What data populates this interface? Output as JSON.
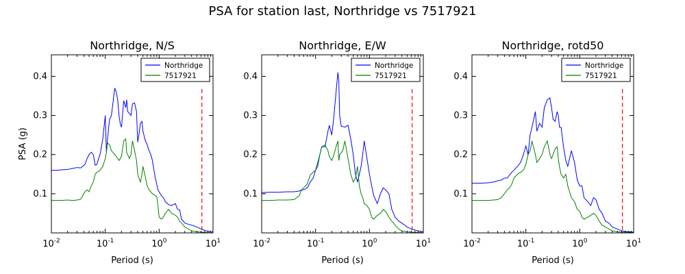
{
  "figure": {
    "title": "PSA for station last, Northridge vs 7517921"
  },
  "chart_data": [
    {
      "type": "line",
      "title": "Northridge, N/S",
      "xlabel": "Period (s)",
      "ylabel": "PSA (g)",
      "xscale": "log",
      "xlim": [
        0.01,
        10
      ],
      "ylim": [
        0,
        0.455
      ],
      "xticks": [
        {
          "value": 0.01,
          "base": "10",
          "exp": "-2"
        },
        {
          "value": 0.1,
          "base": "10",
          "exp": "-1"
        },
        {
          "value": 1,
          "base": "10",
          "exp": "0"
        },
        {
          "value": 10,
          "base": "10",
          "exp": "1"
        }
      ],
      "yticks": [
        {
          "value": 0.1,
          "label": "0.1"
        },
        {
          "value": 0.2,
          "label": "0.2"
        },
        {
          "value": 0.3,
          "label": "0.3"
        },
        {
          "value": 0.4,
          "label": "0.4"
        }
      ],
      "legend": {
        "position": "upper right",
        "show": true
      },
      "vline": {
        "x": 6.2,
        "color": "#ff0000",
        "style": "dashed"
      },
      "series": [
        {
          "name": "Northridge",
          "color": "#0000ff",
          "x": [
            0.01,
            0.012,
            0.015,
            0.02,
            0.025,
            0.03,
            0.035,
            0.038,
            0.042,
            0.046,
            0.05,
            0.055,
            0.06,
            0.065,
            0.07,
            0.075,
            0.08,
            0.09,
            0.1,
            0.105,
            0.11,
            0.12,
            0.13,
            0.15,
            0.16,
            0.17,
            0.18,
            0.19,
            0.2,
            0.22,
            0.24,
            0.25,
            0.26,
            0.27,
            0.28,
            0.3,
            0.32,
            0.35,
            0.38,
            0.4,
            0.42,
            0.45,
            0.48,
            0.5,
            0.55,
            0.6,
            0.65,
            0.7,
            0.75,
            0.8,
            0.85,
            0.9,
            0.95,
            1.0,
            1.1,
            1.2,
            1.3,
            1.5,
            1.7,
            2.0,
            2.2,
            2.4,
            2.6,
            2.8,
            3.0,
            3.5,
            4.0,
            5.0,
            6.0,
            7.5,
            10.0
          ],
          "y": [
            0.16,
            0.16,
            0.161,
            0.162,
            0.165,
            0.167,
            0.166,
            0.17,
            0.175,
            0.19,
            0.2,
            0.206,
            0.2,
            0.173,
            0.175,
            0.19,
            0.2,
            0.24,
            0.3,
            0.205,
            0.24,
            0.29,
            0.3,
            0.37,
            0.36,
            0.34,
            0.3,
            0.278,
            0.27,
            0.338,
            0.32,
            0.34,
            0.31,
            0.308,
            0.305,
            0.3,
            0.33,
            0.332,
            0.31,
            0.232,
            0.25,
            0.28,
            0.285,
            0.26,
            0.237,
            0.225,
            0.21,
            0.2,
            0.185,
            0.16,
            0.14,
            0.125,
            0.11,
            0.105,
            0.095,
            0.09,
            0.08,
            0.072,
            0.07,
            0.075,
            0.06,
            0.059,
            0.035,
            0.03,
            0.025,
            0.022,
            0.02,
            0.015,
            0.01,
            0.005,
            0.003
          ]
        },
        {
          "name": "7517921",
          "color": "#008000",
          "x": [
            0.01,
            0.012,
            0.015,
            0.02,
            0.025,
            0.03,
            0.035,
            0.038,
            0.042,
            0.046,
            0.05,
            0.055,
            0.06,
            0.065,
            0.07,
            0.075,
            0.08,
            0.09,
            0.1,
            0.105,
            0.11,
            0.12,
            0.13,
            0.15,
            0.16,
            0.17,
            0.18,
            0.19,
            0.2,
            0.22,
            0.24,
            0.25,
            0.26,
            0.27,
            0.28,
            0.3,
            0.32,
            0.35,
            0.38,
            0.4,
            0.42,
            0.45,
            0.48,
            0.5,
            0.55,
            0.6,
            0.65,
            0.7,
            0.75,
            0.8,
            0.85,
            0.9,
            0.95,
            1.0,
            1.1,
            1.2,
            1.3,
            1.5,
            1.7,
            2.0,
            2.2,
            2.4,
            2.6,
            2.8,
            3.0,
            3.5,
            4.0,
            5.0,
            6.0,
            7.5,
            10.0
          ],
          "y": [
            0.083,
            0.083,
            0.083,
            0.084,
            0.083,
            0.084,
            0.086,
            0.095,
            0.105,
            0.11,
            0.105,
            0.12,
            0.13,
            0.15,
            0.155,
            0.157,
            0.16,
            0.17,
            0.19,
            0.205,
            0.23,
            0.225,
            0.21,
            0.2,
            0.195,
            0.19,
            0.185,
            0.19,
            0.195,
            0.235,
            0.24,
            0.205,
            0.2,
            0.195,
            0.19,
            0.2,
            0.235,
            0.21,
            0.185,
            0.15,
            0.14,
            0.13,
            0.15,
            0.17,
            0.145,
            0.12,
            0.11,
            0.105,
            0.1,
            0.098,
            0.095,
            0.093,
            0.07,
            0.04,
            0.035,
            0.04,
            0.05,
            0.06,
            0.05,
            0.045,
            0.04,
            0.03,
            0.025,
            0.02,
            0.015,
            0.01,
            0.005,
            0.003,
            0.002,
            0.001,
            0.0005
          ]
        }
      ]
    },
    {
      "type": "line",
      "title": "Northridge, E/W",
      "xlabel": "Period (s)",
      "ylabel": "",
      "xscale": "log",
      "xlim": [
        0.01,
        10
      ],
      "ylim": [
        0,
        0.455
      ],
      "xticks": [
        {
          "value": 0.01,
          "base": "10",
          "exp": "-2"
        },
        {
          "value": 0.1,
          "base": "10",
          "exp": "-1"
        },
        {
          "value": 1,
          "base": "10",
          "exp": "0"
        },
        {
          "value": 10,
          "base": "10",
          "exp": "1"
        }
      ],
      "yticks": [
        {
          "value": 0.1,
          "label": "0.1"
        },
        {
          "value": 0.2,
          "label": "0.2"
        },
        {
          "value": 0.3,
          "label": "0.3"
        },
        {
          "value": 0.4,
          "label": "0.4"
        }
      ],
      "legend": {
        "position": "upper right",
        "show": true
      },
      "vline": {
        "x": 6.2,
        "color": "#ff0000",
        "style": "dashed"
      },
      "series": [
        {
          "name": "Northridge",
          "color": "#0000ff",
          "x": [
            0.01,
            0.015,
            0.02,
            0.03,
            0.04,
            0.05,
            0.055,
            0.06,
            0.07,
            0.08,
            0.09,
            0.1,
            0.11,
            0.12,
            0.13,
            0.15,
            0.17,
            0.18,
            0.2,
            0.22,
            0.24,
            0.26,
            0.27,
            0.28,
            0.3,
            0.32,
            0.35,
            0.4,
            0.45,
            0.5,
            0.55,
            0.6,
            0.65,
            0.7,
            0.75,
            0.8,
            0.9,
            1.0,
            1.1,
            1.2,
            1.4,
            1.6,
            1.8,
            2.0,
            2.3,
            2.6,
            3.0,
            3.5,
            4.0,
            5.0,
            6.0,
            8.0,
            10.0
          ],
          "y": [
            0.103,
            0.104,
            0.104,
            0.105,
            0.105,
            0.107,
            0.11,
            0.11,
            0.115,
            0.13,
            0.14,
            0.16,
            0.18,
            0.2,
            0.22,
            0.22,
            0.26,
            0.275,
            0.25,
            0.3,
            0.36,
            0.41,
            0.39,
            0.3,
            0.272,
            0.272,
            0.27,
            0.275,
            0.24,
            0.2,
            0.15,
            0.13,
            0.15,
            0.17,
            0.2,
            0.235,
            0.19,
            0.15,
            0.12,
            0.095,
            0.075,
            0.1,
            0.115,
            0.11,
            0.1,
            0.06,
            0.04,
            0.03,
            0.025,
            0.015,
            0.01,
            0.005,
            0.003
          ]
        },
        {
          "name": "7517921",
          "color": "#008000",
          "x": [
            0.01,
            0.015,
            0.02,
            0.03,
            0.04,
            0.05,
            0.055,
            0.06,
            0.07,
            0.08,
            0.09,
            0.1,
            0.11,
            0.12,
            0.13,
            0.15,
            0.17,
            0.18,
            0.2,
            0.22,
            0.24,
            0.26,
            0.27,
            0.28,
            0.3,
            0.32,
            0.35,
            0.4,
            0.45,
            0.5,
            0.55,
            0.6,
            0.65,
            0.7,
            0.75,
            0.8,
            0.9,
            1.0,
            1.1,
            1.2,
            1.4,
            1.6,
            1.8,
            2.0,
            2.3,
            2.6,
            3.0,
            3.5,
            4.0,
            5.0,
            6.0,
            8.0,
            10.0
          ],
          "y": [
            0.083,
            0.083,
            0.084,
            0.084,
            0.085,
            0.095,
            0.11,
            0.115,
            0.125,
            0.148,
            0.155,
            0.16,
            0.17,
            0.2,
            0.22,
            0.225,
            0.21,
            0.195,
            0.185,
            0.2,
            0.22,
            0.235,
            0.185,
            0.2,
            0.205,
            0.21,
            0.235,
            0.19,
            0.15,
            0.13,
            0.14,
            0.17,
            0.12,
            0.1,
            0.09,
            0.075,
            0.07,
            0.06,
            0.04,
            0.035,
            0.045,
            0.05,
            0.06,
            0.055,
            0.04,
            0.03,
            0.02,
            0.01,
            0.005,
            0.003,
            0.002,
            0.001,
            0.0005
          ]
        }
      ]
    },
    {
      "type": "line",
      "title": "Northridge, rotd50",
      "xlabel": "Period (s)",
      "ylabel": "",
      "xscale": "log",
      "xlim": [
        0.01,
        10
      ],
      "ylim": [
        0,
        0.455
      ],
      "xticks": [
        {
          "value": 0.01,
          "base": "10",
          "exp": "-2"
        },
        {
          "value": 0.1,
          "base": "10",
          "exp": "-1"
        },
        {
          "value": 1,
          "base": "10",
          "exp": "0"
        },
        {
          "value": 10,
          "base": "10",
          "exp": "1"
        }
      ],
      "yticks": [
        {
          "value": 0.1,
          "label": "0.1"
        },
        {
          "value": 0.2,
          "label": "0.2"
        },
        {
          "value": 0.3,
          "label": "0.3"
        },
        {
          "value": 0.4,
          "label": "0.4"
        }
      ],
      "legend": {
        "position": "upper right",
        "show": true
      },
      "vline": {
        "x": 6.2,
        "color": "#ff0000",
        "style": "dashed"
      },
      "series": [
        {
          "name": "Northridge",
          "color": "#0000ff",
          "x": [
            0.01,
            0.015,
            0.02,
            0.025,
            0.03,
            0.035,
            0.04,
            0.045,
            0.05,
            0.055,
            0.06,
            0.07,
            0.08,
            0.09,
            0.1,
            0.11,
            0.12,
            0.13,
            0.15,
            0.16,
            0.17,
            0.18,
            0.2,
            0.22,
            0.25,
            0.28,
            0.3,
            0.32,
            0.35,
            0.38,
            0.4,
            0.42,
            0.45,
            0.5,
            0.55,
            0.6,
            0.7,
            0.8,
            0.9,
            1.0,
            1.1,
            1.2,
            1.4,
            1.6,
            1.8,
            2.0,
            2.3,
            2.6,
            3.0,
            3.5,
            4.0,
            5.0,
            6.0,
            8.0,
            10.0
          ],
          "y": [
            0.127,
            0.127,
            0.128,
            0.13,
            0.133,
            0.135,
            0.14,
            0.14,
            0.148,
            0.155,
            0.16,
            0.17,
            0.18,
            0.2,
            0.222,
            0.2,
            0.25,
            0.27,
            0.31,
            0.26,
            0.27,
            0.28,
            0.27,
            0.32,
            0.34,
            0.345,
            0.32,
            0.29,
            0.285,
            0.31,
            0.3,
            0.27,
            0.27,
            0.22,
            0.185,
            0.17,
            0.21,
            0.18,
            0.135,
            0.12,
            0.12,
            0.09,
            0.08,
            0.07,
            0.09,
            0.085,
            0.06,
            0.05,
            0.03,
            0.025,
            0.015,
            0.01,
            0.005,
            0.003,
            0.002
          ]
        },
        {
          "name": "7517921",
          "color": "#008000",
          "x": [
            0.01,
            0.015,
            0.02,
            0.025,
            0.03,
            0.035,
            0.04,
            0.045,
            0.05,
            0.055,
            0.06,
            0.07,
            0.08,
            0.09,
            0.1,
            0.11,
            0.12,
            0.13,
            0.15,
            0.16,
            0.17,
            0.18,
            0.2,
            0.22,
            0.25,
            0.28,
            0.3,
            0.32,
            0.35,
            0.38,
            0.4,
            0.42,
            0.45,
            0.5,
            0.55,
            0.6,
            0.7,
            0.8,
            0.9,
            1.0,
            1.1,
            1.2,
            1.4,
            1.6,
            1.8,
            2.0,
            2.3,
            2.6,
            3.0,
            3.5,
            4.0,
            5.0,
            6.0,
            8.0,
            10.0
          ],
          "y": [
            0.083,
            0.083,
            0.083,
            0.084,
            0.085,
            0.09,
            0.1,
            0.11,
            0.115,
            0.125,
            0.14,
            0.15,
            0.155,
            0.16,
            0.175,
            0.2,
            0.21,
            0.235,
            0.2,
            0.18,
            0.185,
            0.19,
            0.2,
            0.22,
            0.235,
            0.2,
            0.19,
            0.2,
            0.215,
            0.22,
            0.19,
            0.17,
            0.15,
            0.14,
            0.15,
            0.12,
            0.09,
            0.08,
            0.06,
            0.055,
            0.04,
            0.035,
            0.04,
            0.045,
            0.05,
            0.045,
            0.03,
            0.02,
            0.015,
            0.01,
            0.005,
            0.003,
            0.002,
            0.001,
            0.0005
          ]
        }
      ]
    }
  ]
}
